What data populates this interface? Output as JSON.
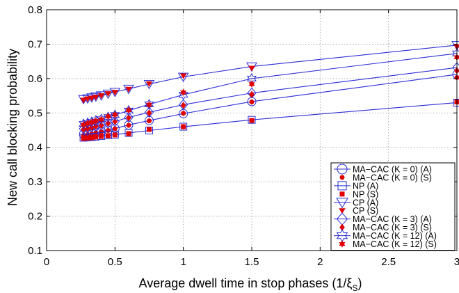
{
  "chart_data": {
    "type": "scatter",
    "title": "",
    "xlabel": "Average dwell time in stop phases (1/ξ",
    "xlabel_sub": "S",
    "xlabel_close": ")",
    "ylabel": "New call blocking probability",
    "xlim": [
      0,
      3
    ],
    "ylim": [
      0.1,
      0.8
    ],
    "xticks": [
      0,
      0.5,
      1,
      1.5,
      2,
      2.5,
      3
    ],
    "xtick_labels": [
      "0",
      "0.5",
      "1",
      "1.5",
      "2",
      "2.5",
      "3"
    ],
    "yticks": [
      0.1,
      0.2,
      0.3,
      0.4,
      0.5,
      0.6,
      0.7,
      0.8
    ],
    "ytick_labels": [
      "0.1",
      "0.2",
      "0.3",
      "0.4",
      "0.5",
      "0.6",
      "0.7",
      "0.8"
    ],
    "grid": true,
    "legend_position": "lower-right",
    "x": [
      0.27,
      0.3,
      0.33,
      0.36,
      0.4,
      0.45,
      0.5,
      0.6,
      0.75,
      1.0,
      1.5,
      3.0
    ],
    "series": [
      {
        "name": "MA−CAC (K = 0) (A)",
        "marker": "circle",
        "color": "#2b2bd6",
        "filled": false,
        "line": true,
        "values": [
          0.438,
          0.439,
          0.441,
          0.443,
          0.446,
          0.45,
          0.455,
          0.465,
          0.478,
          0.498,
          0.533,
          0.612
        ]
      },
      {
        "name": "MA−CAC (K = 0) (S)",
        "marker": "dot",
        "color": "#e00000",
        "filled": true,
        "line": false,
        "values": [
          0.435,
          0.437,
          0.439,
          0.442,
          0.445,
          0.449,
          0.454,
          0.464,
          0.477,
          0.499,
          0.532,
          0.603
        ]
      },
      {
        "name": "NP (A)",
        "marker": "square",
        "color": "#2b2bd6",
        "filled": false,
        "line": true,
        "values": [
          0.428,
          0.429,
          0.43,
          0.431,
          0.433,
          0.435,
          0.437,
          0.442,
          0.449,
          0.46,
          0.48,
          0.53
        ]
      },
      {
        "name": "NP (S)",
        "marker": "square",
        "color": "#e00000",
        "filled": true,
        "line": false,
        "values": [
          0.426,
          0.427,
          0.428,
          0.43,
          0.432,
          0.434,
          0.436,
          0.44,
          0.452,
          0.46,
          0.478,
          0.532
        ]
      },
      {
        "name": "CP (A)",
        "marker": "triangle-down",
        "color": "#2b2bd6",
        "filled": false,
        "line": true,
        "values": [
          0.54,
          0.542,
          0.545,
          0.548,
          0.551,
          0.556,
          0.561,
          0.57,
          0.584,
          0.605,
          0.635,
          0.697
        ]
      },
      {
        "name": "CP (S)",
        "marker": "triangle-down",
        "color": "#e00000",
        "filled": true,
        "line": false,
        "values": [
          0.537,
          0.541,
          0.543,
          0.546,
          0.55,
          0.556,
          0.56,
          0.569,
          0.585,
          0.608,
          0.63,
          0.693
        ]
      },
      {
        "name": "MA−CAC (K = 3) (A)",
        "marker": "diamond",
        "color": "#2b2bd6",
        "filled": false,
        "line": true,
        "values": [
          0.454,
          0.456,
          0.459,
          0.462,
          0.465,
          0.47,
          0.475,
          0.487,
          0.502,
          0.524,
          0.558,
          0.632
        ]
      },
      {
        "name": "MA−CAC (K = 3) (S)",
        "marker": "diamond",
        "color": "#e00000",
        "filled": true,
        "line": false,
        "values": [
          0.452,
          0.455,
          0.458,
          0.461,
          0.464,
          0.47,
          0.475,
          0.486,
          0.5,
          0.522,
          0.554,
          0.623
        ]
      },
      {
        "name": "MA−CAC (K = 12) (A)",
        "marker": "hexagram",
        "color": "#2b2bd6",
        "filled": false,
        "line": true,
        "values": [
          0.468,
          0.471,
          0.474,
          0.478,
          0.482,
          0.488,
          0.494,
          0.507,
          0.525,
          0.553,
          0.6,
          0.673
        ]
      },
      {
        "name": "MA−CAC (K = 12) (S)",
        "marker": "hexagram",
        "color": "#e00000",
        "filled": true,
        "line": false,
        "values": [
          0.466,
          0.47,
          0.473,
          0.477,
          0.481,
          0.49,
          0.495,
          0.508,
          0.524,
          0.56,
          0.584,
          0.662
        ]
      }
    ]
  }
}
